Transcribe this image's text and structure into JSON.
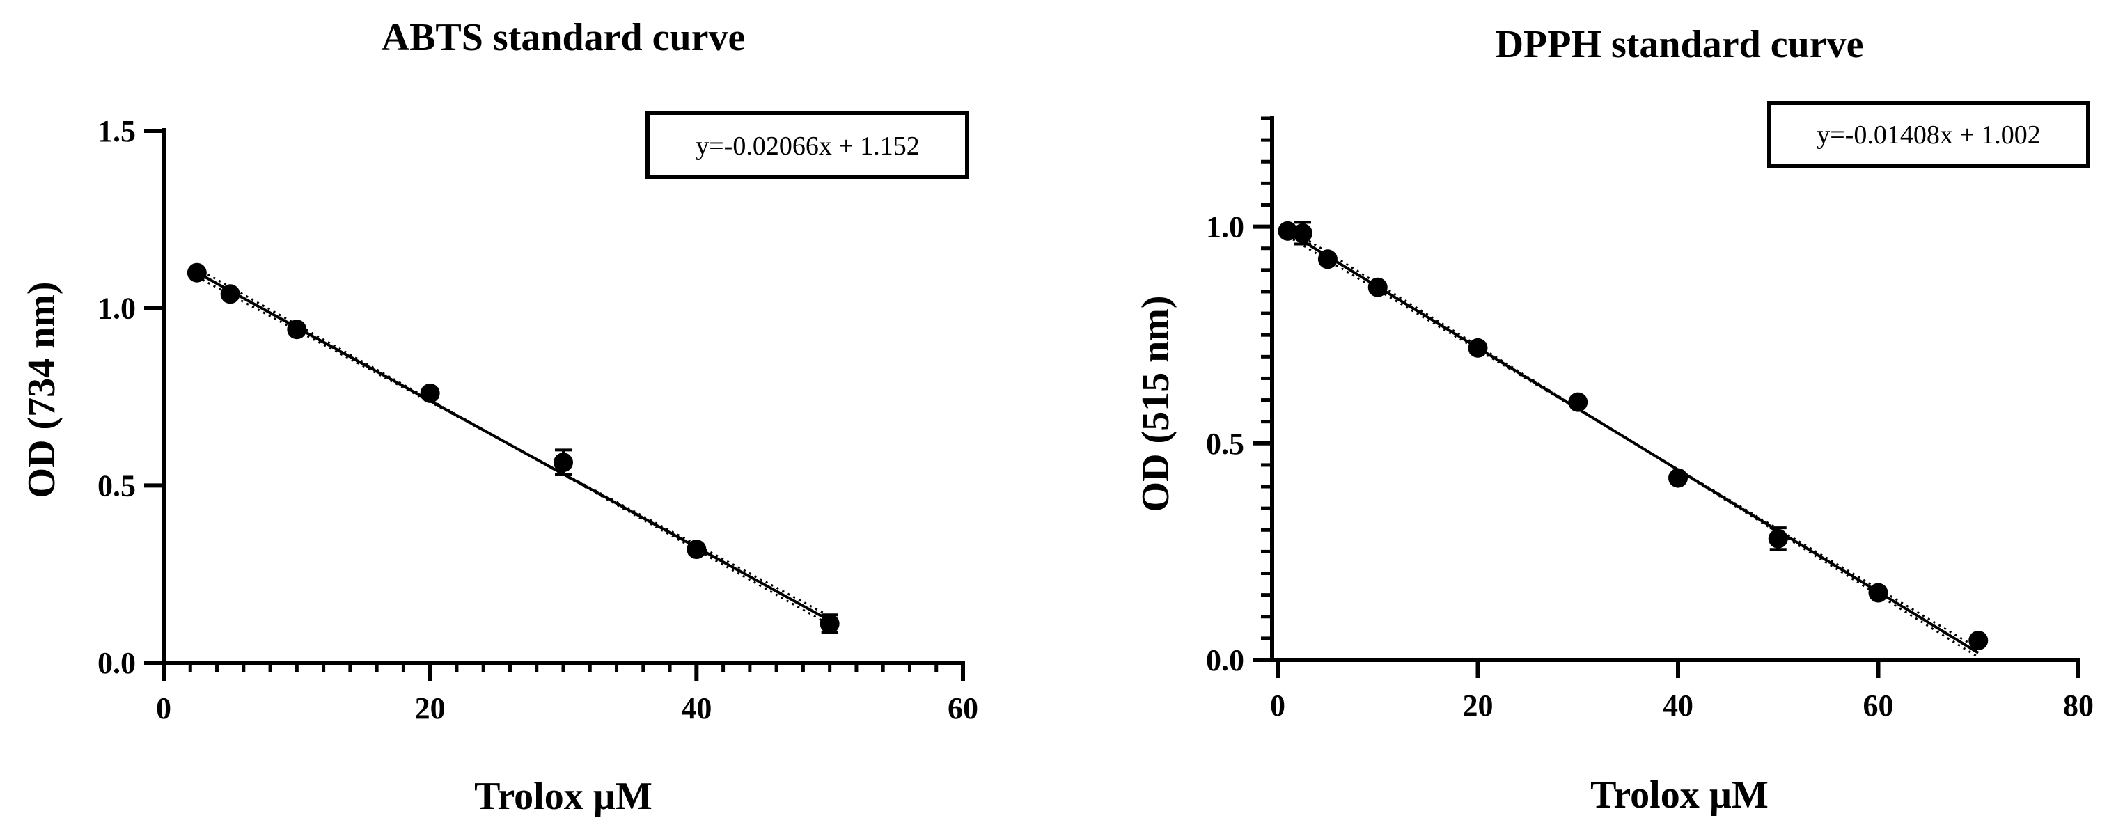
{
  "colors": {
    "ink": "#000000",
    "background": "#ffffff"
  },
  "chart_data": [
    {
      "id": "abts",
      "type": "scatter",
      "title": "ABTS standard curve",
      "xlabel": "Trolox µM",
      "ylabel": "OD (734 nm)",
      "xlim": [
        0,
        60
      ],
      "ylim": [
        0,
        1.5
      ],
      "x_ticks": [
        0,
        20,
        40,
        60
      ],
      "x_tick_labels": [
        "0",
        "20",
        "40",
        "60"
      ],
      "x_minor_step": 2,
      "y_ticks": [
        0.0,
        0.5,
        1.0,
        1.5
      ],
      "y_tick_labels": [
        "0.0",
        "0.5",
        "1.0",
        "1.5"
      ],
      "y_minor_step": 0,
      "grid": false,
      "equation": "y=-0.02066x + 1.152",
      "equation_placement": "top-right",
      "fit": {
        "slope": -0.02066,
        "intercept": 1.152,
        "x_range": [
          2.5,
          50
        ]
      },
      "confidence_band": 0.012,
      "points": [
        {
          "x": 2.5,
          "y": 1.1,
          "err": 0.005
        },
        {
          "x": 5,
          "y": 1.04,
          "err": 0.01
        },
        {
          "x": 10,
          "y": 0.94,
          "err": 0.008
        },
        {
          "x": 20,
          "y": 0.76,
          "err": 0.012
        },
        {
          "x": 30,
          "y": 0.565,
          "err": 0.035
        },
        {
          "x": 40,
          "y": 0.32,
          "err": 0.012
        },
        {
          "x": 50,
          "y": 0.11,
          "err": 0.025
        }
      ]
    },
    {
      "id": "dpph",
      "type": "scatter",
      "title": "DPPH standard curve",
      "xlabel": "Trolox µM",
      "ylabel": "OD (515 nm)",
      "xlim": [
        0,
        80
      ],
      "ylim": [
        0,
        1.25
      ],
      "x_ticks": [
        0,
        20,
        40,
        60,
        80
      ],
      "x_tick_labels": [
        "0",
        "20",
        "40",
        "60",
        "80"
      ],
      "x_minor_step": 0,
      "y_ticks": [
        0.0,
        0.5,
        1.0
      ],
      "y_tick_labels": [
        "0.0",
        "0.5",
        "1.0"
      ],
      "y_minor_step": 0.05,
      "grid": false,
      "equation": "y=-0.01408x + 1.002",
      "equation_placement": "top-right",
      "fit": {
        "slope": -0.01408,
        "intercept": 1.002,
        "x_range": [
          1,
          70
        ]
      },
      "confidence_band": 0.01,
      "points": [
        {
          "x": 1,
          "y": 0.99,
          "err": 0.008
        },
        {
          "x": 2.5,
          "y": 0.985,
          "err": 0.025
        },
        {
          "x": 5,
          "y": 0.925,
          "err": 0.01
        },
        {
          "x": 10,
          "y": 0.86,
          "err": 0.01
        },
        {
          "x": 20,
          "y": 0.72,
          "err": 0.01
        },
        {
          "x": 30,
          "y": 0.595,
          "err": 0.008
        },
        {
          "x": 40,
          "y": 0.42,
          "err": 0.01
        },
        {
          "x": 50,
          "y": 0.28,
          "err": 0.025
        },
        {
          "x": 60,
          "y": 0.155,
          "err": 0.01
        },
        {
          "x": 70,
          "y": 0.045,
          "err": 0.008
        }
      ]
    }
  ]
}
